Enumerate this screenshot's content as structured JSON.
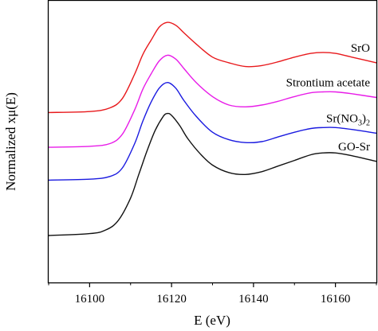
{
  "chart_data": {
    "type": "line",
    "xlabel": "E (eV)",
    "ylabel": "Normalized xμ(E)",
    "xlim": [
      16090,
      16170
    ],
    "xticks": [
      16100,
      16120,
      16140,
      16160
    ],
    "xtick_labels": [
      "16100",
      "16120",
      "16140",
      "16160"
    ],
    "y_ticks_labeled": false,
    "grid": false,
    "legend": "inline labels at right",
    "series": [
      {
        "name": "SrO",
        "label_parts": {
          "base": "SrO",
          "sub1": "",
          "mid": "",
          "sub2": ""
        },
        "color": "#e8191c",
        "x": [
          16090,
          16100,
          16105,
          16108,
          16111,
          16113,
          16115,
          16117,
          16119,
          16121,
          16123,
          16126,
          16130,
          16134,
          16138,
          16142,
          16146,
          16150,
          16154,
          16157,
          16160,
          16164,
          16170
        ],
        "y": [
          1.81,
          1.82,
          1.86,
          1.96,
          2.22,
          2.43,
          2.58,
          2.72,
          2.77,
          2.74,
          2.66,
          2.54,
          2.4,
          2.34,
          2.3,
          2.31,
          2.35,
          2.4,
          2.44,
          2.45,
          2.44,
          2.4,
          2.34
        ]
      },
      {
        "name": "Strontium acetate",
        "label_parts": {
          "base": "Strontium acetate",
          "sub1": "",
          "mid": "",
          "sub2": ""
        },
        "color": "#e81ce8",
        "x": [
          16090,
          16100,
          16105,
          16108,
          16111,
          16113,
          16115,
          16117,
          16119,
          16121,
          16123,
          16126,
          16130,
          16134,
          16138,
          16142,
          16146,
          16150,
          16154,
          16157,
          16160,
          16164,
          16170
        ],
        "y": [
          1.44,
          1.45,
          1.48,
          1.58,
          1.84,
          2.06,
          2.22,
          2.36,
          2.42,
          2.38,
          2.28,
          2.13,
          1.98,
          1.89,
          1.87,
          1.89,
          1.93,
          1.98,
          2.02,
          2.03,
          2.03,
          2.01,
          1.97
        ]
      },
      {
        "name": "Sr(NO3)2",
        "label_parts": {
          "base": "Sr(NO",
          "sub1": "3",
          "mid": ")",
          "sub2": "2"
        },
        "color": "#1a1ae0",
        "x": [
          16090,
          16100,
          16105,
          16108,
          16111,
          16113,
          16115,
          16117,
          16119,
          16121,
          16123,
          16126,
          16130,
          16134,
          16138,
          16142,
          16146,
          16150,
          16154,
          16157,
          16160,
          16164,
          16170
        ],
        "y": [
          1.09,
          1.1,
          1.13,
          1.22,
          1.48,
          1.72,
          1.92,
          2.07,
          2.13,
          2.07,
          1.94,
          1.77,
          1.6,
          1.52,
          1.49,
          1.5,
          1.55,
          1.6,
          1.64,
          1.65,
          1.65,
          1.63,
          1.59
        ]
      },
      {
        "name": "GO-Sr",
        "label_parts": {
          "base": "GO-Sr",
          "sub1": "",
          "mid": "",
          "sub2": ""
        },
        "color": "#111111",
        "x": [
          16090,
          16100,
          16104,
          16107,
          16110,
          16112,
          16114,
          16116,
          16118,
          16119,
          16120,
          16122,
          16124,
          16127,
          16130,
          16134,
          16138,
          16142,
          16146,
          16150,
          16154,
          16157,
          16160,
          16164,
          16170
        ],
        "y": [
          0.5,
          0.52,
          0.56,
          0.66,
          0.9,
          1.15,
          1.4,
          1.62,
          1.77,
          1.8,
          1.78,
          1.67,
          1.53,
          1.37,
          1.25,
          1.17,
          1.15,
          1.18,
          1.24,
          1.3,
          1.36,
          1.38,
          1.38,
          1.35,
          1.29
        ]
      }
    ]
  }
}
